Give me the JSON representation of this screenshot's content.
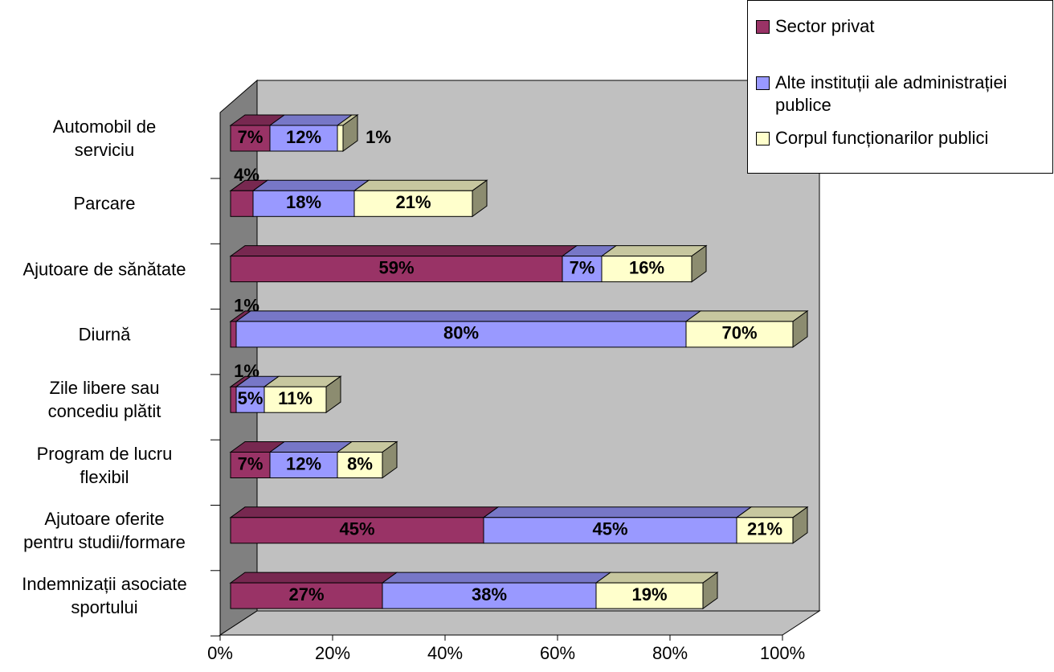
{
  "chart_data": {
    "type": "bar3d_stacked_horizontal",
    "categories": [
      "Automobil de\nserviciu",
      "Parcare",
      "Ajutoare de sănătate",
      "Diurnă",
      "Zile libere sau\nconcediu plătit",
      "Program de lucru\nflexibil",
      "Ajutoare oferite\npentru studii/formare",
      "Indemnizații asociate\nsportului"
    ],
    "series": [
      {
        "name": "Sector privat",
        "color": "#993366",
        "values": [
          7,
          4,
          59,
          1,
          1,
          7,
          45,
          27
        ],
        "value_labels": [
          "7%",
          "4%",
          "59%",
          "1%",
          "1%",
          "7%",
          "45%",
          "27%"
        ]
      },
      {
        "name": "Alte instituții ale administrației\npublice",
        "color": "#9999ff",
        "values": [
          12,
          18,
          7,
          80,
          5,
          12,
          45,
          38
        ],
        "value_labels": [
          "12%",
          "18%",
          "7%",
          "80%",
          "5%",
          "12%",
          "45%",
          "38%"
        ]
      },
      {
        "name": "Corpul funcționarilor  publici",
        "color": "#ffffcc",
        "values": [
          1,
          21,
          16,
          70,
          11,
          8,
          21,
          19
        ],
        "value_labels": [
          "1%",
          "21%",
          "16%",
          "70%",
          "11%",
          "8%",
          "21%",
          "19%"
        ]
      }
    ],
    "xlim": [
      0,
      100
    ],
    "xticks": [
      {
        "value": 0,
        "label": "0%"
      },
      {
        "value": 20,
        "label": "20%"
      },
      {
        "value": 40,
        "label": "40%"
      },
      {
        "value": 60,
        "label": "60%"
      },
      {
        "value": 80,
        "label": "80%"
      },
      {
        "value": 100,
        "label": "100%"
      }
    ],
    "legend": "top-right"
  }
}
